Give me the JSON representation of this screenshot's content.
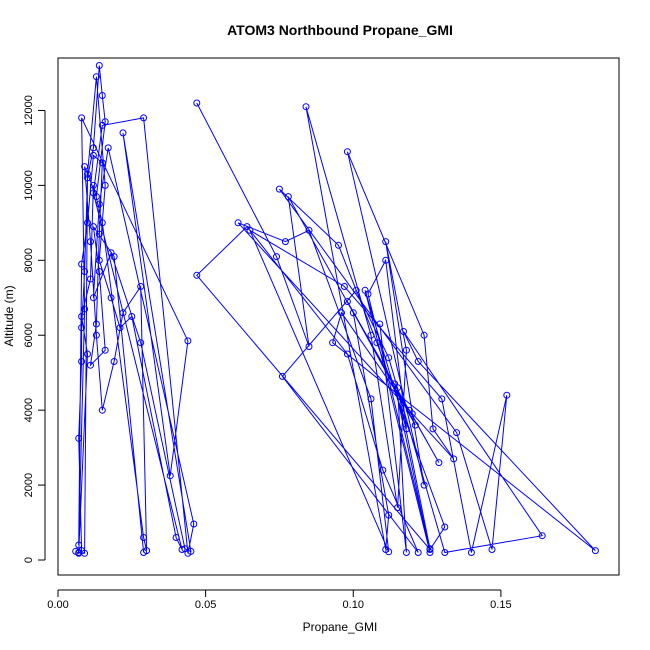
{
  "chart_data": {
    "type": "line",
    "title": "ATOM3 Northbound Propane_GMI",
    "xlabel": "Propane_GMI",
    "ylabel": "Altitude (m)",
    "xlim": [
      0.0,
      0.19
    ],
    "ylim": [
      -400,
      13400
    ],
    "xticks": [
      0.0,
      0.05,
      0.1,
      0.15
    ],
    "xtick_labels": [
      "0.00",
      "0.05",
      "0.10",
      "0.15"
    ],
    "yticks": [
      0,
      2000,
      4000,
      6000,
      8000,
      10000,
      12000
    ],
    "ytick_labels": [
      "0",
      "2000",
      "4000",
      "6000",
      "8000",
      "10000",
      "12000"
    ],
    "grid": false,
    "color": "#0000ff",
    "marker": "open-circle",
    "series": [
      {
        "points": [
          [
            0.006,
            230
          ],
          [
            0.007,
            180
          ],
          [
            0.008,
            250
          ],
          [
            0.007,
            3250
          ],
          [
            0.008,
            5300
          ],
          [
            0.008,
            6200
          ],
          [
            0.009,
            7700
          ],
          [
            0.01,
            10200
          ],
          [
            0.012,
            11000
          ],
          [
            0.014,
            13200
          ],
          [
            0.015,
            12400
          ],
          [
            0.016,
            11700
          ],
          [
            0.013,
            9700
          ],
          [
            0.009,
            10500
          ],
          [
            0.011,
            8500
          ],
          [
            0.013,
            6000
          ],
          [
            0.015,
            4000
          ],
          [
            0.019,
            5300
          ],
          [
            0.022,
            6600
          ],
          [
            0.028,
            7300
          ],
          [
            0.03,
            250
          ],
          [
            0.029,
            600
          ],
          [
            0.015,
            9000
          ],
          [
            0.012,
            10000
          ],
          [
            0.011,
            7500
          ],
          [
            0.008,
            6500
          ],
          [
            0.01,
            5500
          ],
          [
            0.007,
            200
          ],
          [
            0.009,
            180
          ],
          [
            0.01,
            10300
          ],
          [
            0.013,
            12900
          ],
          [
            0.016,
            10000
          ],
          [
            0.014,
            8000
          ],
          [
            0.018,
            7000
          ],
          [
            0.021,
            6200
          ],
          [
            0.025,
            6500
          ],
          [
            0.04,
            600
          ],
          [
            0.042,
            280
          ],
          [
            0.012,
            9800
          ],
          [
            0.015,
            11600
          ],
          [
            0.029,
            11800
          ],
          [
            0.044,
            180
          ],
          [
            0.046,
            960
          ],
          [
            0.017,
            11000
          ],
          [
            0.014,
            9500
          ],
          [
            0.012,
            7000
          ],
          [
            0.018,
            8200
          ],
          [
            0.028,
            5800
          ],
          [
            0.043,
            300
          ],
          [
            0.045,
            230
          ],
          [
            0.022,
            11400
          ],
          [
            0.038,
            2250
          ],
          [
            0.044,
            5850
          ],
          [
            0.008,
            11800
          ],
          [
            0.009,
            6700
          ],
          [
            0.007,
            400
          ],
          [
            0.008,
            7900
          ],
          [
            0.01,
            9000
          ],
          [
            0.012,
            10800
          ],
          [
            0.015,
            10600
          ],
          [
            0.014,
            8700
          ],
          [
            0.013,
            6300
          ],
          [
            0.011,
            5200
          ],
          [
            0.016,
            5600
          ],
          [
            0.014,
            7700
          ],
          [
            0.012,
            8900
          ],
          [
            0.019,
            8100
          ],
          [
            0.029,
            200
          ]
        ]
      },
      {
        "points": [
          [
            0.047,
            12200
          ],
          [
            0.074,
            8100
          ],
          [
            0.085,
            5700
          ],
          [
            0.078,
            9700
          ],
          [
            0.1,
            6600
          ],
          [
            0.112,
            1200
          ],
          [
            0.111,
            280
          ],
          [
            0.084,
            12100
          ],
          [
            0.106,
            6000
          ],
          [
            0.115,
            1400
          ],
          [
            0.118,
            5600
          ],
          [
            0.111,
            8500
          ],
          [
            0.12,
            3900
          ],
          [
            0.124,
            2000
          ],
          [
            0.098,
            10900
          ],
          [
            0.124,
            6000
          ],
          [
            0.127,
            3500
          ],
          [
            0.134,
            2700
          ],
          [
            0.061,
            9000
          ],
          [
            0.077,
            8500
          ],
          [
            0.085,
            8800
          ],
          [
            0.106,
            4300
          ],
          [
            0.112,
            220
          ],
          [
            0.065,
            8800
          ],
          [
            0.097,
            7300
          ],
          [
            0.13,
            4300
          ],
          [
            0.14,
            200
          ],
          [
            0.152,
            4400
          ],
          [
            0.147,
            280
          ],
          [
            0.135,
            3400
          ],
          [
            0.075,
            9900
          ],
          [
            0.095,
            8400
          ],
          [
            0.108,
            5800
          ],
          [
            0.131,
            880
          ],
          [
            0.126,
            280
          ],
          [
            0.047,
            7600
          ],
          [
            0.064,
            8900
          ],
          [
            0.098,
            5500
          ],
          [
            0.11,
            2400
          ],
          [
            0.122,
            200
          ],
          [
            0.076,
            4900
          ],
          [
            0.101,
            7200
          ],
          [
            0.112,
            5400
          ],
          [
            0.131,
            200
          ],
          [
            0.164,
            650
          ],
          [
            0.117,
            6100
          ],
          [
            0.122,
            5300
          ],
          [
            0.182,
            250
          ],
          [
            0.093,
            5800
          ],
          [
            0.096,
            6600
          ],
          [
            0.119,
            4000
          ],
          [
            0.129,
            2600
          ],
          [
            0.098,
            6900
          ],
          [
            0.121,
            3600
          ],
          [
            0.114,
            4700
          ],
          [
            0.126,
            200
          ],
          [
            0.104,
            7200
          ],
          [
            0.118,
            3500
          ],
          [
            0.111,
            8000
          ],
          [
            0.105,
            7100
          ],
          [
            0.126,
            300
          ],
          [
            0.115,
            4600
          ],
          [
            0.118,
            200
          ],
          [
            0.109,
            6300
          ]
        ]
      }
    ]
  }
}
